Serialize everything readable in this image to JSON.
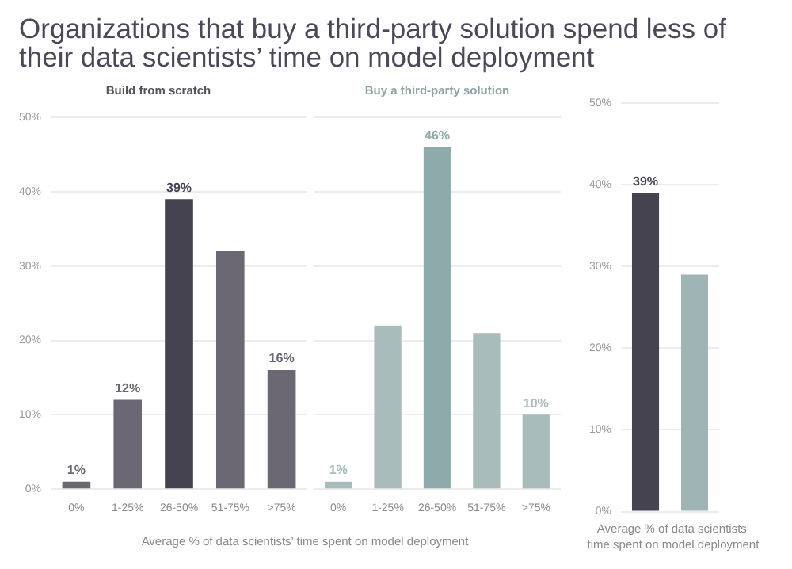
{
  "chart_data": [
    {
      "type": "bar",
      "title": "Organizations that buy a third-party solution spend less of their data scientists’ time on model deployment",
      "subtitle": "Build from scratch",
      "xlabel": "Average % of data scientists’ time spent on model deployment",
      "categories": [
        "0%",
        "1-25%",
        "26-50%",
        "51-75%",
        ">75%"
      ],
      "values": [
        1,
        12,
        39,
        32,
        16
      ],
      "value_labels": [
        "1%",
        "12%",
        "39%",
        null,
        "16%"
      ],
      "colors": [
        "#6b6873",
        "#6b6873",
        "#45434f",
        "#6b6873",
        "#6b6873"
      ],
      "ylim": [
        0,
        50
      ],
      "yticks": [
        {
          "value": 0,
          "label": "0%"
        },
        {
          "value": 10,
          "label": "10%"
        },
        {
          "value": 20,
          "label": "20%"
        },
        {
          "value": 30,
          "label": "30%"
        },
        {
          "value": 40,
          "label": "40%"
        },
        {
          "value": 50,
          "label": "50%"
        }
      ],
      "grid": "y"
    },
    {
      "type": "bar",
      "subtitle": "Buy a third-party solution",
      "categories": [
        "0%",
        "1-25%",
        "26-50%",
        "51-75%",
        ">75%"
      ],
      "values": [
        1,
        22,
        46,
        21,
        10
      ],
      "value_labels": [
        "1%",
        null,
        "46%",
        null,
        "10%"
      ],
      "colors": [
        "#a9bcbc",
        "#a9bcbc",
        "#8eaaaa",
        "#a9bcbc",
        "#a9bcbc"
      ],
      "ylim": [
        0,
        50
      ],
      "yticks": [
        {
          "value": 0,
          "label": null
        },
        {
          "value": 10,
          "label": null
        },
        {
          "value": 20,
          "label": null
        },
        {
          "value": 30,
          "label": null
        },
        {
          "value": 40,
          "label": null
        },
        {
          "value": 50,
          "label": null
        }
      ],
      "grid": "y",
      "tick_labels": "x"
    },
    {
      "type": "bar",
      "xlabel": "Average % of data scientists’ time spent on model deployment",
      "categories": [
        null,
        null
      ],
      "values": [
        39,
        29
      ],
      "value_labels": [
        "39%",
        null
      ],
      "colors": [
        "#45434f",
        "#9fb4b4"
      ],
      "ylim": [
        0,
        50
      ],
      "yticks": [
        {
          "value": 0,
          "label": "0%"
        },
        {
          "value": 10,
          "label": "10%"
        },
        {
          "value": 20,
          "label": "20%"
        },
        {
          "value": 30,
          "label": "30%"
        },
        {
          "value": 40,
          "label": "40%"
        },
        {
          "value": 50,
          "label": "50%"
        }
      ],
      "grid": "y",
      "tick_labels": "y"
    }
  ]
}
